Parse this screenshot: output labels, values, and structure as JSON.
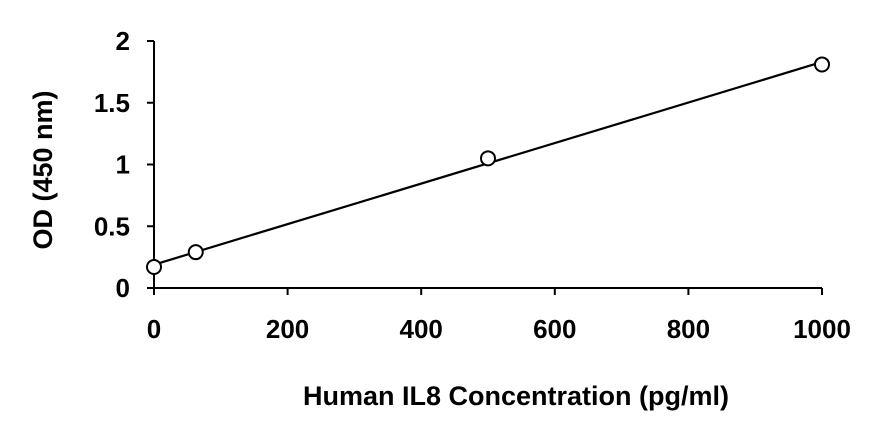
{
  "chart_data": {
    "type": "scatter",
    "title": "",
    "xlabel": "Human IL8 Concentration (pg/ml)",
    "ylabel": "OD (450 nm)",
    "xlim": [
      0,
      1000
    ],
    "ylim": [
      0,
      2
    ],
    "x_ticks": [
      "0",
      "200",
      "400",
      "600",
      "800",
      "1000"
    ],
    "y_ticks": [
      "0",
      "0.5",
      "1",
      "1.5",
      "2"
    ],
    "grid": false,
    "legend": "none",
    "series": [
      {
        "x": [
          0,
          62.5,
          500,
          1000
        ],
        "y": [
          0.17,
          0.29,
          1.05,
          1.81
        ],
        "marker": "open-circle",
        "color": "#000000"
      }
    ],
    "trendline": {
      "type": "linear",
      "color": "#000000"
    }
  }
}
